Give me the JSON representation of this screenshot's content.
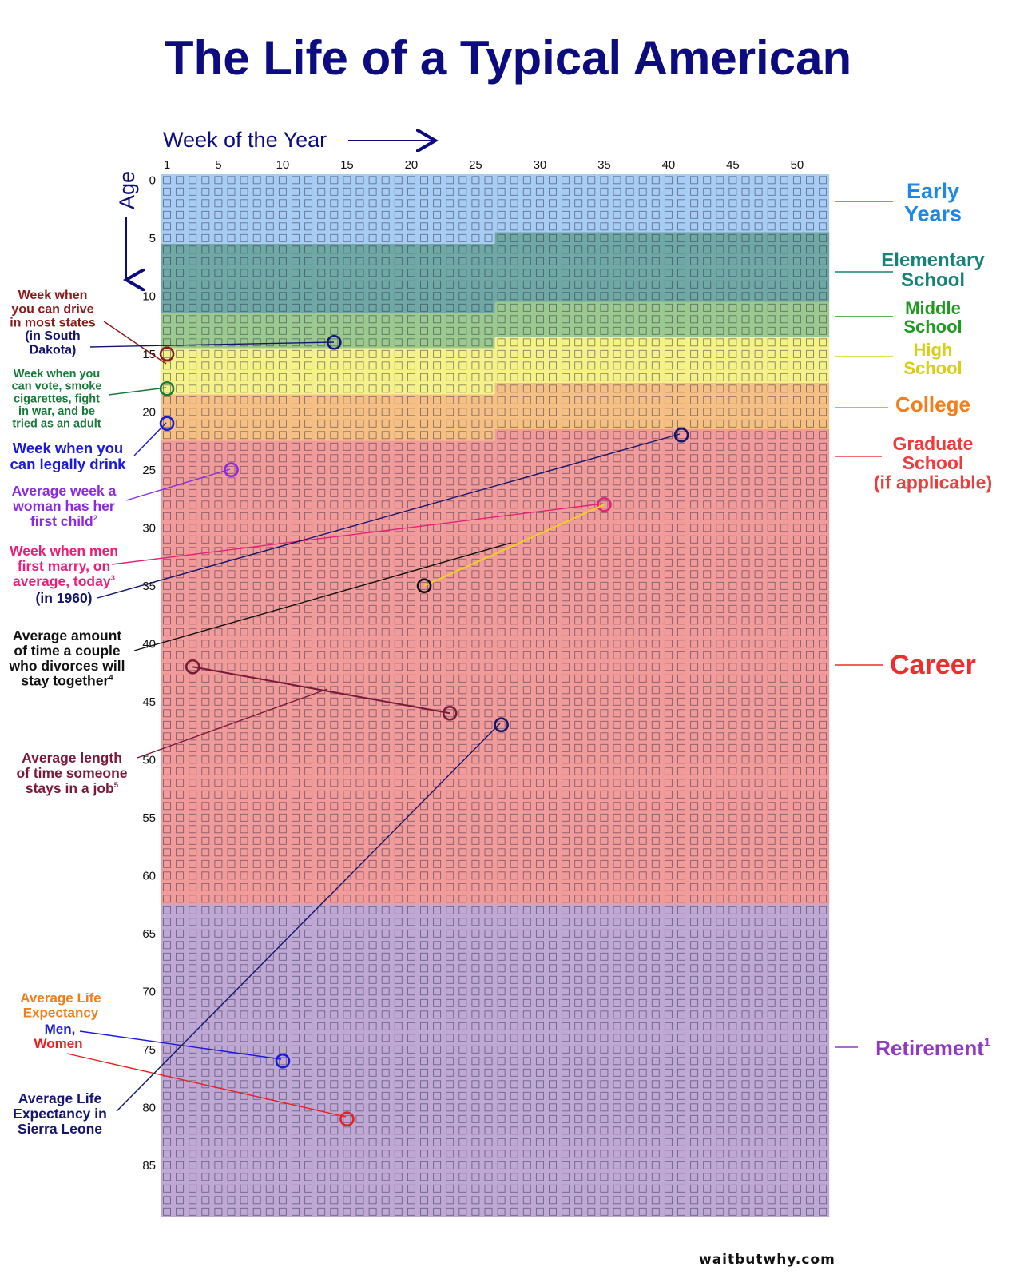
{
  "title": "The Life of a Typical American",
  "footer": "waitbutwhy.com",
  "chart_data": {
    "type": "heatmap",
    "xlabel": "Week of the Year",
    "ylabel": "Age",
    "x_ticks": [
      1,
      5,
      10,
      15,
      20,
      25,
      30,
      35,
      40,
      45,
      50
    ],
    "y_ticks": [
      0,
      5,
      10,
      15,
      20,
      25,
      30,
      35,
      40,
      45,
      50,
      55,
      60,
      65,
      70,
      75,
      80,
      85
    ],
    "weeks_per_year": 52,
    "years": 90,
    "phases": [
      {
        "name": "Early Years",
        "label_lines": [
          "Early",
          "Years"
        ],
        "color": "#a8cdf5",
        "label_color": "#1e88e8",
        "start_age": 0,
        "start_week": 1,
        "end_age": 5,
        "end_week": 26
      },
      {
        "name": "Elementary School",
        "label_lines": [
          "Elementary",
          "School"
        ],
        "color": "#6fa8a4",
        "label_color": "#168278",
        "start_age": 5,
        "start_week": 27,
        "end_age": 11,
        "end_week": 26
      },
      {
        "name": "Middle School",
        "label_lines": [
          "Middle",
          "School"
        ],
        "color": "#9cc98f",
        "label_color": "#1f9a1f",
        "start_age": 11,
        "start_week": 27,
        "end_age": 14,
        "end_week": 26
      },
      {
        "name": "High School",
        "label_lines": [
          "High",
          "School"
        ],
        "color": "#f6f28a",
        "label_color": "#d8cf12",
        "start_age": 14,
        "start_week": 27,
        "end_age": 18,
        "end_week": 26
      },
      {
        "name": "College",
        "label_lines": [
          "College"
        ],
        "color": "#f6c085",
        "label_color": "#f07e1a",
        "start_age": 18,
        "start_week": 27,
        "end_age": 22,
        "end_week": 26
      },
      {
        "name": "Graduate School (if applicable)",
        "label_lines": [
          "Graduate",
          "School",
          "(if applicable)"
        ],
        "color": "#f29b9b",
        "label_color": "#ee3b3b",
        "start_age": 22,
        "start_week": 27,
        "end_age": 62,
        "end_week": 52
      },
      {
        "name": "Career",
        "label_lines": [
          "Career"
        ],
        "color": "#f29b9b",
        "label_color": "#ee2d2d",
        "start_age": 22,
        "start_week": 27,
        "end_age": 62,
        "end_week": 52
      },
      {
        "name": "Retirement",
        "label_lines": [
          "Retirement"
        ],
        "sup": "1",
        "color": "#bfa8d4",
        "label_color": "#9038c0",
        "start_age": 63,
        "start_week": 1,
        "end_age": 89,
        "end_week": 52
      }
    ],
    "markers": [
      {
        "lines": [
          "Week when",
          "you can drive",
          "in most states"
        ],
        "color": "#8b1a1a",
        "age": 15,
        "week": 1
      },
      {
        "lines": [
          "(in South",
          "Dakota)"
        ],
        "color": "#15156e",
        "age": 14,
        "week": 14
      },
      {
        "lines": [
          "Week when you",
          "can vote, smoke",
          "cigarettes, fight",
          "in war, and be",
          "tried as an adult"
        ],
        "color": "#1a7a3a",
        "age": 18,
        "week": 1
      },
      {
        "lines": [
          "Week when you",
          "can legally drink"
        ],
        "color": "#1a1ad8",
        "age": 21,
        "week": 1
      },
      {
        "lines": [
          "Average week a",
          "woman has her",
          "first child"
        ],
        "sup": "2",
        "color": "#8a2be2",
        "age": 25,
        "week": 6
      },
      {
        "lines": [
          "Week when men",
          "first marry, on",
          "average, today"
        ],
        "sup": "3",
        "color": "#e81f78",
        "age": 28,
        "week": 35
      },
      {
        "lines": [
          "(in 1960)"
        ],
        "color": "#15156e",
        "age": 22,
        "week": 41
      },
      {
        "lines": [
          "Average amount",
          "of time a couple",
          "who divorces will",
          "stay together"
        ],
        "sup": "4",
        "color": "#111111",
        "age_start": 35,
        "week_start": 21,
        "age_end": 28,
        "week_end": 35
      },
      {
        "lines": [
          "Average length",
          "of time someone",
          "stays in a job"
        ],
        "sup": "5",
        "color": "#7a1a3a",
        "age_start": 42,
        "week_start": 3,
        "age_end": 46,
        "week_end": 23
      },
      {
        "lines": [
          "Average Life",
          "Expectancy"
        ],
        "color": "#f07e1a",
        "age": 76,
        "week": 10
      },
      {
        "lines": [
          "Men,"
        ],
        "color": "#1a1ad8",
        "age": 76,
        "week": 10
      },
      {
        "lines": [
          "Women"
        ],
        "color": "#e81f1f",
        "age": 81,
        "week": 15
      },
      {
        "lines": [
          "Average Life",
          "Expectancy in",
          "Sierra Leone"
        ],
        "color": "#15156e",
        "age": 47,
        "week": 27
      }
    ]
  }
}
